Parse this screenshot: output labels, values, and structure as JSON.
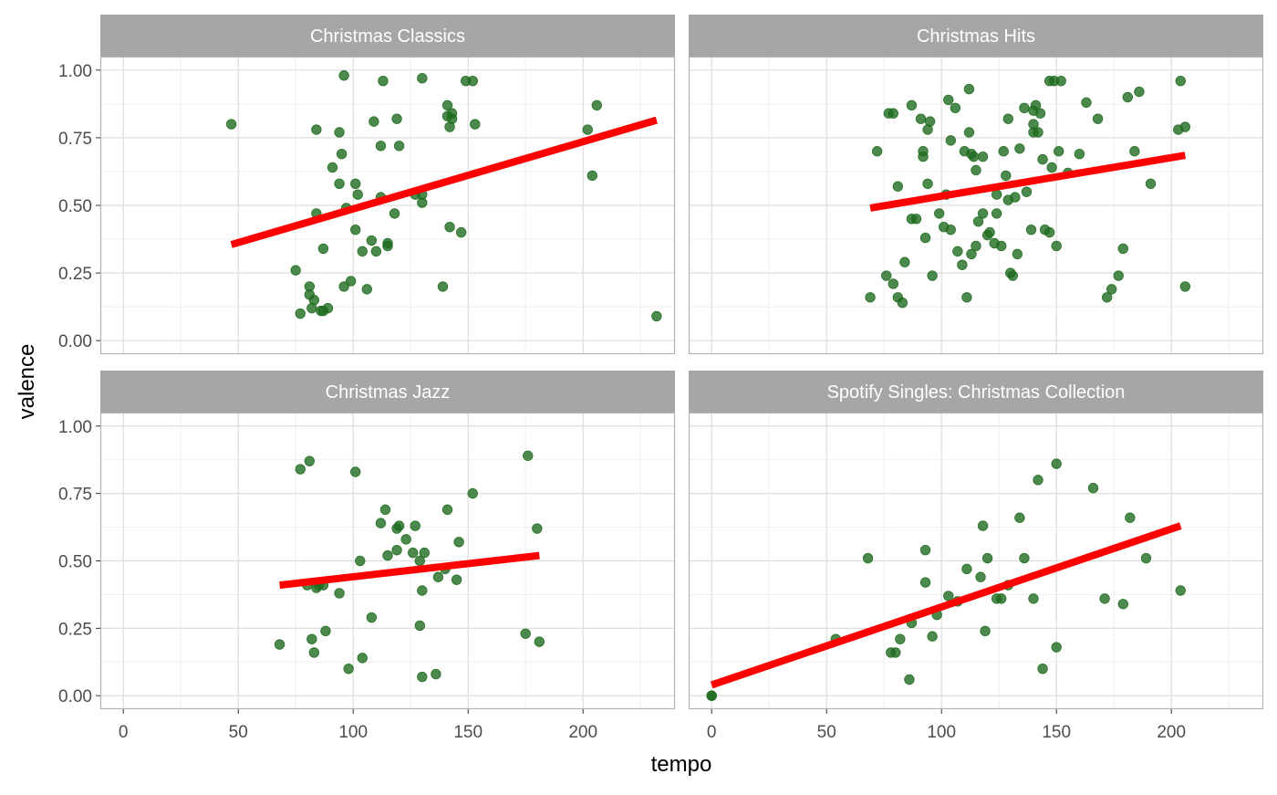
{
  "chart_data": {
    "type": "scatter",
    "xlabel": "tempo",
    "ylabel": "valence",
    "xlim": [
      -10,
      240
    ],
    "ylim": [
      -0.05,
      1.05
    ],
    "x_ticks": [
      0,
      50,
      100,
      150,
      200
    ],
    "x_tick_labels": [
      "0",
      "50",
      "100",
      "150",
      "200"
    ],
    "y_ticks": [
      0,
      0.25,
      0.5,
      0.75,
      1.0
    ],
    "y_tick_labels": [
      "0.00",
      "0.25",
      "0.50",
      "0.75",
      "1.00"
    ],
    "grid": true,
    "colors": {
      "point": "#1f6b1f",
      "trend_line": "#ff0000",
      "strip_fill": "#a6a6a6",
      "strip_text": "#ffffff",
      "panel_border": "#b3b3b3",
      "grid_major": "#dedede",
      "grid_minor": "#efefef",
      "axis_text": "#4d4d4d"
    },
    "panels": [
      {
        "title": "Christmas Classics",
        "trend": {
          "x": [
            47,
            232
          ],
          "y": [
            0.355,
            0.815
          ]
        },
        "points": [
          [
            47,
            0.8
          ],
          [
            75,
            0.26
          ],
          [
            77,
            0.1
          ],
          [
            81,
            0.2
          ],
          [
            81,
            0.17
          ],
          [
            82,
            0.12
          ],
          [
            83,
            0.15
          ],
          [
            84,
            0.47
          ],
          [
            84,
            0.78
          ],
          [
            86,
            0.11
          ],
          [
            87,
            0.11
          ],
          [
            87,
            0.34
          ],
          [
            89,
            0.12
          ],
          [
            91,
            0.64
          ],
          [
            94,
            0.58
          ],
          [
            94,
            0.77
          ],
          [
            95,
            0.69
          ],
          [
            96,
            0.2
          ],
          [
            96,
            0.98
          ],
          [
            97,
            0.49
          ],
          [
            99,
            0.22
          ],
          [
            101,
            0.58
          ],
          [
            101,
            0.41
          ],
          [
            102,
            0.54
          ],
          [
            104,
            0.33
          ],
          [
            106,
            0.19
          ],
          [
            108,
            0.37
          ],
          [
            109,
            0.81
          ],
          [
            110,
            0.33
          ],
          [
            112,
            0.72
          ],
          [
            112,
            0.53
          ],
          [
            113,
            0.96
          ],
          [
            115,
            0.36
          ],
          [
            115,
            0.35
          ],
          [
            118,
            0.47
          ],
          [
            119,
            0.82
          ],
          [
            120,
            0.72
          ],
          [
            127,
            0.54
          ],
          [
            130,
            0.54
          ],
          [
            130,
            0.51
          ],
          [
            130,
            0.97
          ],
          [
            139,
            0.2
          ],
          [
            141,
            0.87
          ],
          [
            141,
            0.83
          ],
          [
            142,
            0.79
          ],
          [
            142,
            0.42
          ],
          [
            143,
            0.82
          ],
          [
            143,
            0.84
          ],
          [
            147,
            0.4
          ],
          [
            149,
            0.96
          ],
          [
            152,
            0.96
          ],
          [
            153,
            0.8
          ],
          [
            202,
            0.78
          ],
          [
            204,
            0.61
          ],
          [
            206,
            0.87
          ],
          [
            232,
            0.09
          ]
        ]
      },
      {
        "title": "Christmas Hits",
        "trend": {
          "x": [
            69,
            206
          ],
          "y": [
            0.49,
            0.685
          ]
        },
        "points": [
          [
            69,
            0.16
          ],
          [
            72,
            0.7
          ],
          [
            76,
            0.24
          ],
          [
            77,
            0.84
          ],
          [
            79,
            0.21
          ],
          [
            79,
            0.84
          ],
          [
            81,
            0.16
          ],
          [
            81,
            0.57
          ],
          [
            83,
            0.14
          ],
          [
            84,
            0.29
          ],
          [
            87,
            0.45
          ],
          [
            87,
            0.87
          ],
          [
            89,
            0.45
          ],
          [
            91,
            0.82
          ],
          [
            92,
            0.7
          ],
          [
            92,
            0.68
          ],
          [
            93,
            0.38
          ],
          [
            94,
            0.58
          ],
          [
            94,
            0.78
          ],
          [
            95,
            0.81
          ],
          [
            96,
            0.24
          ],
          [
            99,
            0.47
          ],
          [
            101,
            0.42
          ],
          [
            102,
            0.54
          ],
          [
            103,
            0.89
          ],
          [
            104,
            0.41
          ],
          [
            104,
            0.74
          ],
          [
            106,
            0.86
          ],
          [
            107,
            0.33
          ],
          [
            109,
            0.28
          ],
          [
            110,
            0.7
          ],
          [
            111,
            0.16
          ],
          [
            112,
            0.93
          ],
          [
            112,
            0.77
          ],
          [
            113,
            0.69
          ],
          [
            113,
            0.32
          ],
          [
            114,
            0.68
          ],
          [
            115,
            0.35
          ],
          [
            115,
            0.63
          ],
          [
            116,
            0.44
          ],
          [
            118,
            0.68
          ],
          [
            118,
            0.47
          ],
          [
            120,
            0.39
          ],
          [
            121,
            0.4
          ],
          [
            123,
            0.36
          ],
          [
            124,
            0.54
          ],
          [
            124,
            0.47
          ],
          [
            126,
            0.35
          ],
          [
            127,
            0.7
          ],
          [
            128,
            0.61
          ],
          [
            129,
            0.82
          ],
          [
            129,
            0.52
          ],
          [
            130,
            0.25
          ],
          [
            131,
            0.24
          ],
          [
            132,
            0.53
          ],
          [
            133,
            0.32
          ],
          [
            134,
            0.71
          ],
          [
            136,
            0.86
          ],
          [
            137,
            0.55
          ],
          [
            139,
            0.41
          ],
          [
            140,
            0.77
          ],
          [
            140,
            0.8
          ],
          [
            140,
            0.85
          ],
          [
            141,
            0.87
          ],
          [
            142,
            0.77
          ],
          [
            143,
            0.84
          ],
          [
            144,
            0.67
          ],
          [
            145,
            0.41
          ],
          [
            147,
            0.4
          ],
          [
            147,
            0.96
          ],
          [
            148,
            0.64
          ],
          [
            149,
            0.96
          ],
          [
            150,
            0.35
          ],
          [
            151,
            0.7
          ],
          [
            152,
            0.96
          ],
          [
            155,
            0.62
          ],
          [
            160,
            0.69
          ],
          [
            163,
            0.88
          ],
          [
            168,
            0.82
          ],
          [
            172,
            0.16
          ],
          [
            174,
            0.19
          ],
          [
            177,
            0.24
          ],
          [
            179,
            0.34
          ],
          [
            181,
            0.9
          ],
          [
            184,
            0.7
          ],
          [
            186,
            0.92
          ],
          [
            191,
            0.58
          ],
          [
            203,
            0.78
          ],
          [
            204,
            0.96
          ],
          [
            206,
            0.79
          ],
          [
            206,
            0.2
          ]
        ]
      },
      {
        "title": "Christmas Jazz",
        "trend": {
          "x": [
            68,
            181
          ],
          "y": [
            0.41,
            0.52
          ]
        },
        "points": [
          [
            68,
            0.19
          ],
          [
            77,
            0.84
          ],
          [
            80,
            0.41
          ],
          [
            81,
            0.87
          ],
          [
            82,
            0.21
          ],
          [
            83,
            0.16
          ],
          [
            84,
            0.4
          ],
          [
            85,
            0.41
          ],
          [
            87,
            0.41
          ],
          [
            88,
            0.24
          ],
          [
            94,
            0.38
          ],
          [
            98,
            0.1
          ],
          [
            101,
            0.83
          ],
          [
            103,
            0.5
          ],
          [
            104,
            0.14
          ],
          [
            108,
            0.29
          ],
          [
            112,
            0.64
          ],
          [
            114,
            0.69
          ],
          [
            115,
            0.52
          ],
          [
            119,
            0.54
          ],
          [
            119,
            0.62
          ],
          [
            120,
            0.63
          ],
          [
            123,
            0.58
          ],
          [
            126,
            0.53
          ],
          [
            127,
            0.63
          ],
          [
            129,
            0.26
          ],
          [
            129,
            0.5
          ],
          [
            130,
            0.39
          ],
          [
            130,
            0.07
          ],
          [
            131,
            0.53
          ],
          [
            136,
            0.08
          ],
          [
            137,
            0.44
          ],
          [
            140,
            0.47
          ],
          [
            141,
            0.69
          ],
          [
            145,
            0.43
          ],
          [
            146,
            0.57
          ],
          [
            152,
            0.75
          ],
          [
            175,
            0.23
          ],
          [
            176,
            0.89
          ],
          [
            180,
            0.62
          ],
          [
            181,
            0.2
          ]
        ]
      },
      {
        "title": "Spotify Singles: Christmas Collection",
        "trend": {
          "x": [
            0,
            204
          ],
          "y": [
            0.04,
            0.63
          ]
        },
        "points": [
          [
            0,
            0.0
          ],
          [
            0,
            0.0
          ],
          [
            54,
            0.21
          ],
          [
            68,
            0.51
          ],
          [
            78,
            0.16
          ],
          [
            80,
            0.16
          ],
          [
            82,
            0.21
          ],
          [
            86,
            0.06
          ],
          [
            87,
            0.27
          ],
          [
            93,
            0.54
          ],
          [
            93,
            0.42
          ],
          [
            96,
            0.22
          ],
          [
            98,
            0.3
          ],
          [
            103,
            0.37
          ],
          [
            107,
            0.35
          ],
          [
            111,
            0.47
          ],
          [
            117,
            0.44
          ],
          [
            118,
            0.63
          ],
          [
            119,
            0.24
          ],
          [
            120,
            0.51
          ],
          [
            124,
            0.36
          ],
          [
            126,
            0.36
          ],
          [
            129,
            0.41
          ],
          [
            134,
            0.66
          ],
          [
            136,
            0.51
          ],
          [
            140,
            0.36
          ],
          [
            142,
            0.8
          ],
          [
            144,
            0.1
          ],
          [
            150,
            0.86
          ],
          [
            150,
            0.18
          ],
          [
            166,
            0.77
          ],
          [
            171,
            0.36
          ],
          [
            179,
            0.34
          ],
          [
            182,
            0.66
          ],
          [
            189,
            0.51
          ],
          [
            204,
            0.39
          ]
        ]
      }
    ]
  }
}
